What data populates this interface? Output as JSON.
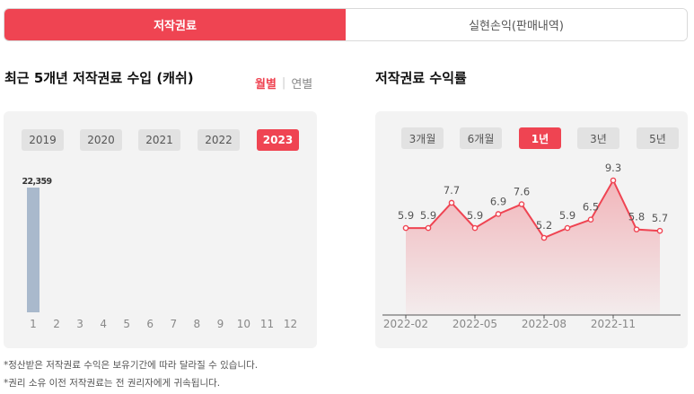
{
  "top_tabs": {
    "active": "저작권료",
    "inactive": "실현손익(판매내역)"
  },
  "left": {
    "title": "최근 5개년 저작권료 수입 (캐쉬)",
    "toggle": {
      "monthly": "월별",
      "yearly": "연별"
    },
    "years": [
      "2019",
      "2020",
      "2021",
      "2022",
      "2023"
    ],
    "active_year": "2023"
  },
  "right": {
    "title": "저작권료 수익률",
    "periods": [
      "3개월",
      "6개월",
      "1년",
      "3년",
      "5년"
    ],
    "active_period": "1년"
  },
  "notes": [
    "*정산받은 저작권료 수익은 보유기간에 따라 달라질 수 있습니다.",
    "*권리 소유 이전 저작권료는 전 권리자에게 귀속됩니다."
  ],
  "colors": {
    "accent": "#ef4452",
    "bar": "#a9b9cc",
    "panel": "#f3f3f3"
  },
  "chart_data": [
    {
      "type": "bar",
      "categories": [
        "1",
        "2",
        "3",
        "4",
        "5",
        "6",
        "7",
        "8",
        "9",
        "10",
        "11",
        "12"
      ],
      "values": [
        22359,
        null,
        null,
        null,
        null,
        null,
        null,
        null,
        null,
        null,
        null,
        null
      ],
      "labels": [
        "22,359",
        "",
        "",
        "",
        "",
        "",
        "",
        "",
        "",
        "",
        "",
        ""
      ]
    },
    {
      "type": "area",
      "values": [
        5.9,
        5.9,
        7.7,
        5.9,
        6.9,
        7.6,
        5.2,
        5.9,
        6.5,
        9.3,
        5.8,
        5.7
      ],
      "x_ticks": [
        "2022-02",
        "2022-05",
        "2022-08",
        "2022-11"
      ]
    }
  ]
}
